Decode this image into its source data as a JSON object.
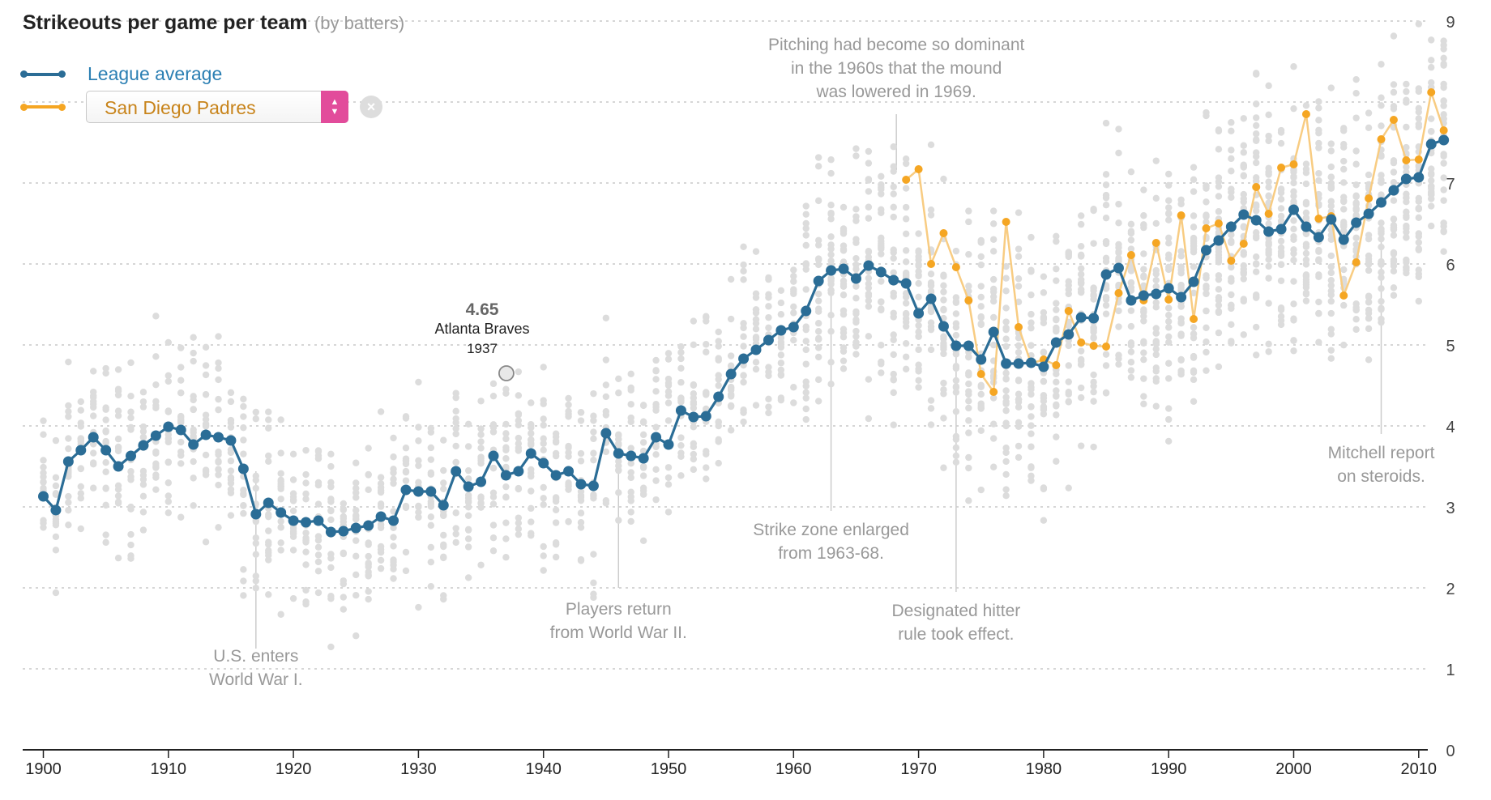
{
  "title": "Strikeouts per game per team",
  "subtitle": "(by batters)",
  "legend": {
    "league_label": "League average",
    "team_selected": "San Diego Padres",
    "clear_button_label": "×",
    "select_arrows_icon": "chevron-up-down-icon",
    "clear_icon": "close-icon"
  },
  "colors": {
    "league": "#2b6d96",
    "league_text": "#2b7fb3",
    "team": "#f5a623",
    "team_text": "#c8841b",
    "team_line": "#f8cc82",
    "scatter": "#dcdcdc",
    "grid": "#c8c8c8",
    "annotation_text": "#999999",
    "select_accent": "#e24c9b"
  },
  "tooltip": {
    "value": "4.65",
    "team": "Atlanta Braves",
    "year": "1937"
  },
  "chart_data": {
    "type": "line",
    "x_range": [
      1900,
      2012
    ],
    "y_range": [
      0,
      9
    ],
    "x_ticks": [
      1900,
      1910,
      1920,
      1930,
      1940,
      1950,
      1960,
      1970,
      1980,
      1990,
      2000,
      2010
    ],
    "y_ticks": [
      0,
      1,
      2,
      3,
      4,
      5,
      6,
      7,
      9
    ],
    "grid": true,
    "series": [
      {
        "name": "League average",
        "x": [
          1900,
          1901,
          1902,
          1903,
          1904,
          1905,
          1906,
          1907,
          1908,
          1909,
          1910,
          1911,
          1912,
          1913,
          1914,
          1915,
          1916,
          1917,
          1918,
          1919,
          1920,
          1921,
          1922,
          1923,
          1924,
          1925,
          1926,
          1927,
          1928,
          1929,
          1930,
          1931,
          1932,
          1933,
          1934,
          1935,
          1936,
          1937,
          1938,
          1939,
          1940,
          1941,
          1942,
          1943,
          1944,
          1945,
          1946,
          1947,
          1948,
          1949,
          1950,
          1951,
          1952,
          1953,
          1954,
          1955,
          1956,
          1957,
          1958,
          1959,
          1960,
          1961,
          1962,
          1963,
          1964,
          1965,
          1966,
          1967,
          1968,
          1969,
          1970,
          1971,
          1972,
          1973,
          1974,
          1975,
          1976,
          1977,
          1978,
          1979,
          1980,
          1981,
          1982,
          1983,
          1984,
          1985,
          1986,
          1987,
          1988,
          1989,
          1990,
          1991,
          1992,
          1993,
          1994,
          1995,
          1996,
          1997,
          1998,
          1999,
          2000,
          2001,
          2002,
          2003,
          2004,
          2005,
          2006,
          2007,
          2008,
          2009,
          2010,
          2011,
          2012
        ],
        "values": [
          3.13,
          2.96,
          3.56,
          3.7,
          3.86,
          3.7,
          3.5,
          3.63,
          3.76,
          3.88,
          3.99,
          3.95,
          3.77,
          3.89,
          3.86,
          3.82,
          3.47,
          2.91,
          3.05,
          2.93,
          2.83,
          2.81,
          2.83,
          2.69,
          2.7,
          2.74,
          2.77,
          2.88,
          2.83,
          3.21,
          3.19,
          3.19,
          3.02,
          3.44,
          3.25,
          3.31,
          3.63,
          3.39,
          3.44,
          3.66,
          3.54,
          3.39,
          3.44,
          3.28,
          3.26,
          3.91,
          3.66,
          3.63,
          3.6,
          3.86,
          3.77,
          4.19,
          4.11,
          4.12,
          4.36,
          4.64,
          4.83,
          4.94,
          5.06,
          5.18,
          5.22,
          5.42,
          5.79,
          5.92,
          5.94,
          5.82,
          5.98,
          5.9,
          5.8,
          5.76,
          5.39,
          5.57,
          5.23,
          4.99,
          4.99,
          4.82,
          5.16,
          4.77,
          4.77,
          4.78,
          4.73,
          5.03,
          5.13,
          5.34,
          5.33,
          5.87,
          5.95,
          5.55,
          5.61,
          5.63,
          5.7,
          5.59,
          5.78,
          6.17,
          6.29,
          6.46,
          6.61,
          6.54,
          6.4,
          6.43,
          6.67,
          6.46,
          6.33,
          6.55,
          6.3,
          6.51,
          6.62,
          6.76,
          6.91,
          7.05,
          7.07,
          7.48,
          7.53
        ]
      },
      {
        "name": "San Diego Padres",
        "x": [
          1969,
          1970,
          1971,
          1972,
          1973,
          1974,
          1975,
          1976,
          1977,
          1978,
          1979,
          1980,
          1981,
          1982,
          1983,
          1984,
          1985,
          1986,
          1987,
          1988,
          1989,
          1990,
          1991,
          1992,
          1993,
          1994,
          1995,
          1996,
          1997,
          1998,
          1999,
          2000,
          2001,
          2002,
          2003,
          2004,
          2005,
          2006,
          2007,
          2008,
          2009,
          2010,
          2011,
          2012
        ],
        "values": [
          7.04,
          7.17,
          6.0,
          6.38,
          5.96,
          5.55,
          4.64,
          4.42,
          6.52,
          5.22,
          4.77,
          4.82,
          4.75,
          5.42,
          5.03,
          4.99,
          4.98,
          5.64,
          6.11,
          5.55,
          6.26,
          5.56,
          6.6,
          5.32,
          6.44,
          6.5,
          6.04,
          6.25,
          6.95,
          6.62,
          7.19,
          7.23,
          7.85,
          6.56,
          6.59,
          5.61,
          6.02,
          6.81,
          7.54,
          7.78,
          7.28,
          7.29,
          8.12,
          7.65
        ]
      }
    ],
    "annotations": [
      {
        "text": [
          "U.S. enters",
          "World War I."
        ],
        "year": 1917
      },
      {
        "text": [
          "Players return",
          "from World War II."
        ],
        "year": 1946
      },
      {
        "text": [
          "Strike zone enlarged",
          "from 1963-68."
        ],
        "year": 1963
      },
      {
        "text": [
          "Designated hitter",
          "rule took effect."
        ],
        "year": 1973
      },
      {
        "text": [
          "Pitching had become so dominant",
          "in the 1960s that the mound",
          "was lowered in 1969."
        ],
        "year": 1969
      },
      {
        "text": [
          "Mitchell report",
          "on steroids."
        ],
        "year": 2007
      }
    ],
    "highlight_point": {
      "year": 1937,
      "value": 4.65
    }
  }
}
